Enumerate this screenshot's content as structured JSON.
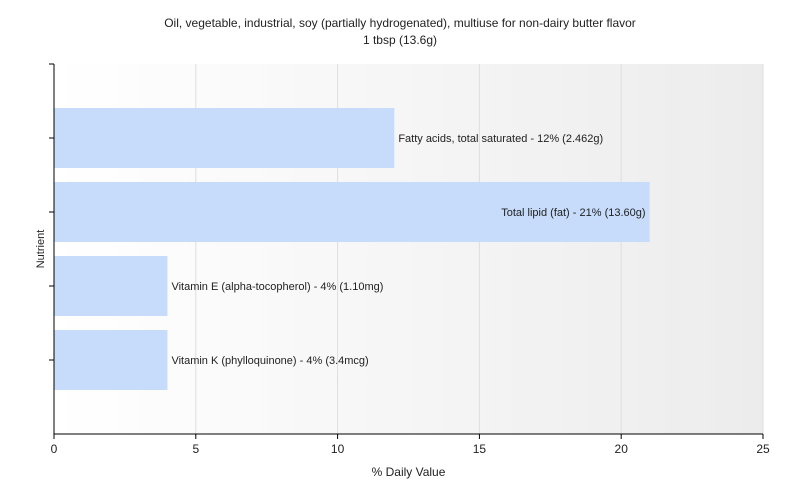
{
  "chart_data": {
    "type": "bar",
    "orientation": "horizontal",
    "title": "Oil, vegetable, industrial, soy (partially hydrogenated), multiuse for non-dairy butter flavor",
    "subtitle": "1 tbsp (13.6g)",
    "xlabel": "% Daily Value",
    "ylabel": "Nutrient",
    "xlim": [
      0,
      25
    ],
    "xticks": [
      "0",
      "5",
      "10",
      "15",
      "20",
      "25"
    ],
    "grid": true,
    "bar_color": "#c6dcfa",
    "categories": [
      "Fatty acids, total saturated",
      "Total lipid (fat)",
      "Vitamin E (alpha-tocopherol)",
      "Vitamin K (phylloquinone)"
    ],
    "values": [
      12,
      21,
      4,
      4
    ],
    "data_labels": [
      "Fatty acids, total saturated - 12% (2.462g)",
      "Total lipid (fat) - 21% (13.60g)",
      "Vitamin E (alpha-tocopherol) - 4% (1.10mg)",
      "Vitamin K (phylloquinone) - 4% (3.4mcg)"
    ]
  }
}
